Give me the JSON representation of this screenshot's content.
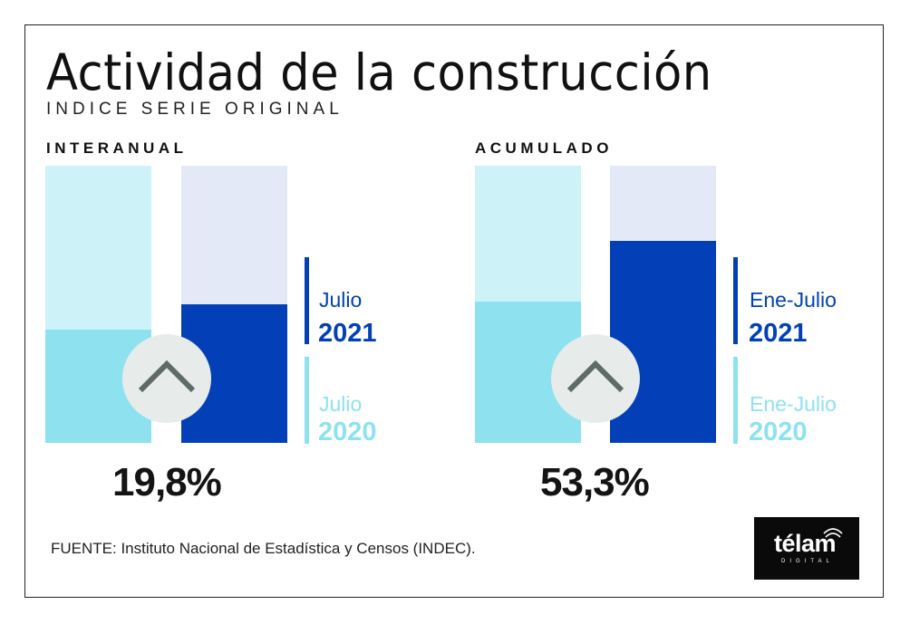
{
  "header": {
    "title": "Actividad de la construcción",
    "subtitle": "INDICE SERIE ORIGINAL"
  },
  "colors": {
    "dark_blue": "#0340b7",
    "light_cyan": "#8ee2f0",
    "pale_cyan": "#cdf2f8",
    "pale_lavender": "#e3e9f7",
    "circle_bg": "#e7ebea",
    "chevron": "#5f6b67"
  },
  "chart_data": [
    {
      "type": "bar",
      "title": "INTERANUAL",
      "categories": [
        "Julio 2020",
        "Julio 2021"
      ],
      "series": [
        {
          "name": "Julio 2020",
          "label_month": "Julio",
          "label_year": "2020",
          "value": 0.41
        },
        {
          "name": "Julio 2021",
          "label_month": "Julio",
          "label_year": "2021",
          "value": 0.5
        }
      ],
      "ylim": [
        0,
        1
      ],
      "change_label": "19,8%",
      "indicator": "up-chevron"
    },
    {
      "type": "bar",
      "title": "ACUMULADO",
      "categories": [
        "Ene-Julio 2020",
        "Ene-Julio 2021"
      ],
      "series": [
        {
          "name": "Ene-Julio 2020",
          "label_month": "Ene-Julio",
          "label_year": "2020",
          "value": 0.51
        },
        {
          "name": "Ene-Julio 2021",
          "label_month": "Ene-Julio",
          "label_year": "2021",
          "value": 0.73
        }
      ],
      "ylim": [
        0,
        1
      ],
      "change_label": "53,3%",
      "indicator": "up-chevron"
    }
  ],
  "footer": {
    "source": "FUENTE: Instituto Nacional de Estadística y Censos (INDEC).",
    "logo_word": "télam",
    "logo_sub": "DIGITAL"
  }
}
